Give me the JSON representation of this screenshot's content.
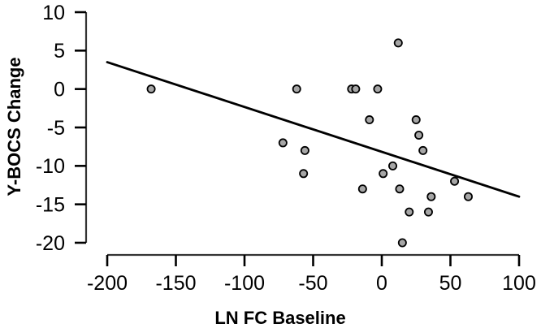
{
  "chart_data": {
    "type": "scatter",
    "title": "",
    "xlabel": "LN FC Baseline",
    "ylabel": "Y-BOCS Change",
    "xlim": [
      -200,
      100
    ],
    "ylim": [
      -20,
      10
    ],
    "x_ticks": [
      -200,
      -150,
      -100,
      -50,
      0,
      50,
      100
    ],
    "y_ticks": [
      10,
      5,
      0,
      -5,
      -10,
      -15,
      -20
    ],
    "grid": false,
    "legend": false,
    "points": [
      [
        -168,
        0
      ],
      [
        -72,
        -7
      ],
      [
        -62,
        0
      ],
      [
        -57,
        -11
      ],
      [
        -56,
        -8
      ],
      [
        -22,
        0
      ],
      [
        -19,
        0
      ],
      [
        -14,
        -13
      ],
      [
        -9,
        -4
      ],
      [
        -3,
        0
      ],
      [
        1,
        -11
      ],
      [
        8,
        -10
      ],
      [
        12,
        6
      ],
      [
        13,
        -13
      ],
      [
        15,
        -20
      ],
      [
        20,
        -16
      ],
      [
        25,
        -4
      ],
      [
        27,
        -6
      ],
      [
        30,
        -8
      ],
      [
        34,
        -16
      ],
      [
        36,
        -14
      ],
      [
        53,
        -12
      ],
      [
        63,
        -14
      ]
    ],
    "regression_line": {
      "x1": -200,
      "y1": 3.5,
      "x2": 100,
      "y2": -14
    },
    "colors": {
      "point_fill": "#a6a6a6",
      "point_stroke": "#000000",
      "line": "#000000",
      "axis": "#333333",
      "tick": "#000000",
      "background": "#ffffff"
    }
  }
}
